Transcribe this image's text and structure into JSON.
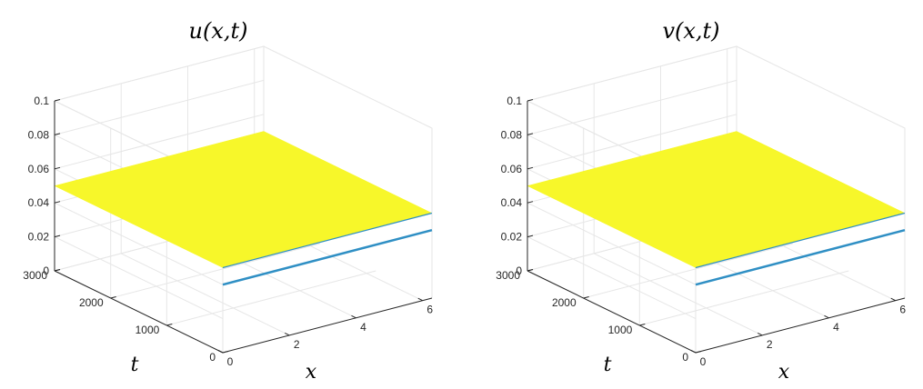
{
  "chart_data": [
    {
      "type": "surface",
      "title": "u(x,t)",
      "xlabel": "x",
      "ylabel": "t",
      "zlabel": "",
      "xlim": [
        0,
        6.28
      ],
      "ylim": [
        0,
        3000
      ],
      "zlim": [
        0,
        0.1
      ],
      "x_ticks": [
        "0",
        "2",
        "4",
        "6"
      ],
      "y_ticks": [
        "0",
        "1000",
        "2000",
        "3000"
      ],
      "z_ticks": [
        "0",
        "0.02",
        "0.04",
        "0.06",
        "0.08",
        "0.1"
      ],
      "surface_level": 0.05,
      "initial_level": 0.04,
      "colors": {
        "surface": "#f7f72a",
        "edge": "#2f8fc4",
        "grid": "#e6e6e6"
      },
      "grid": true
    },
    {
      "type": "surface",
      "title": "v(x,t)",
      "xlabel": "x",
      "ylabel": "t",
      "zlabel": "",
      "xlim": [
        0,
        6.28
      ],
      "ylim": [
        0,
        3000
      ],
      "zlim": [
        0,
        0.1
      ],
      "x_ticks": [
        "0",
        "2",
        "4",
        "6"
      ],
      "y_ticks": [
        "0",
        "1000",
        "2000",
        "3000"
      ],
      "z_ticks": [
        "0",
        "0.02",
        "0.04",
        "0.06",
        "0.08",
        "0.1"
      ],
      "surface_level": 0.05,
      "initial_level": 0.04,
      "colors": {
        "surface": "#f7f72a",
        "edge": "#2f8fc4",
        "grid": "#e6e6e6"
      },
      "grid": true
    }
  ]
}
